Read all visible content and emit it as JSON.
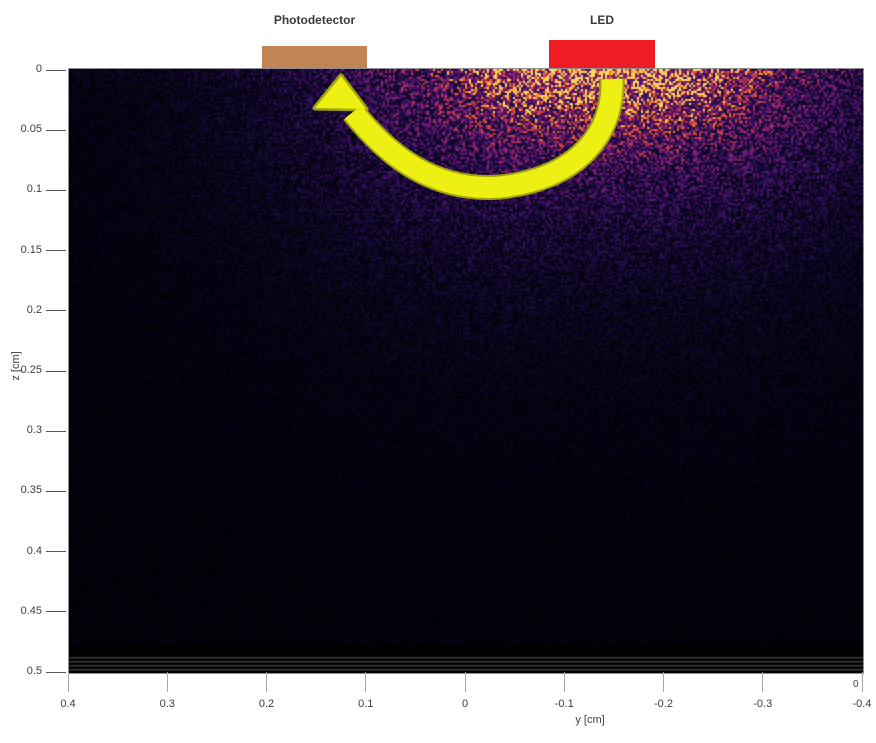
{
  "labels": {
    "photodetector": "Photodetector",
    "led": "LED"
  },
  "axes": {
    "x_label": "y [cm]",
    "y_label": "z [cm]",
    "x_ticks": [
      "0.4",
      "0.3",
      "0.2",
      "0.1",
      "0",
      "-0.1",
      "-0.2",
      "-0.3",
      "-0.4"
    ],
    "y_ticks": [
      "0",
      "0.05",
      "0.1",
      "0.15",
      "0.2",
      "0.25",
      "0.3",
      "0.35",
      "0.4",
      "0.45",
      "0.5"
    ],
    "corner_label": "0"
  },
  "colors": {
    "photodetector": "#c08455",
    "led": "#ee1c23",
    "arrow_fill": "#eef013",
    "arrow_outline": "#9fa40c",
    "plot_background": "#000000",
    "axis_text": "#3d3d3d"
  },
  "chart_data": {
    "type": "heatmap",
    "title": "",
    "xlabel": "y [cm]",
    "ylabel": "z [cm]",
    "x_ticks": [
      0.4,
      0.3,
      0.2,
      0.1,
      0,
      -0.1,
      -0.2,
      -0.3,
      -0.4
    ],
    "y_ticks": [
      0,
      0.05,
      0.1,
      0.15,
      0.2,
      0.25,
      0.3,
      0.35,
      0.4,
      0.45,
      0.5
    ],
    "xlim": [
      0.4,
      -0.4
    ],
    "x_axis_reversed": true,
    "ylim_top_to_bottom": [
      0,
      0.5
    ],
    "grid": false,
    "legend": "none",
    "colormap": "inferno-like (black -> violet -> magenta -> orange -> yellow)",
    "field": "Monte Carlo simulated photon fluence in tissue (speckled)",
    "source_led": {
      "label": "LED",
      "surface_y_cm": [
        -0.09,
        -0.19
      ],
      "z_cm": 0
    },
    "detector": {
      "label": "Photodetector",
      "surface_y_cm": [
        0.1,
        0.2
      ],
      "z_cm": 0
    },
    "hotspot": {
      "center_y_cm": -0.14,
      "center_z_cm": 0,
      "peak": "bright orange-yellow at tissue surface directly under LED",
      "decay": "fluence falls off roughly exponentially with depth and lateral distance; violet haze to z~0.25 cm, near-black below z~0.35 cm and toward plot edges"
    },
    "bottom_boundary_lines_z_cm": [
      0.487,
      0.49,
      0.493,
      0.497
    ],
    "annotations": [
      {
        "type": "curved-arrow",
        "color": "#eef013",
        "from": "LED at surface (y ~ -0.14 cm)",
        "to": "Photodetector at surface (y ~ 0.15 cm)",
        "shape": "banana arc dipping to z ~ 0.1 cm, arrowhead pointing up toward photodetector"
      }
    ]
  }
}
